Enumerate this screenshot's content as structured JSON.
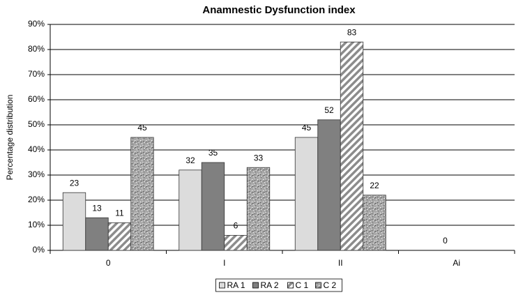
{
  "chart_data": {
    "type": "bar",
    "title": "Anamnestic Dysfunction index",
    "y_label": "Percentage distribution",
    "categories": [
      "0",
      "I",
      "II",
      "Ai"
    ],
    "series": [
      {
        "name": "RA 1",
        "color": "#dcdcdc",
        "pattern": "solid",
        "values": [
          23,
          32,
          45,
          null
        ]
      },
      {
        "name": "RA 2",
        "color": "#808080",
        "pattern": "solid",
        "values": [
          13,
          35,
          52,
          0
        ]
      },
      {
        "name": "C 1",
        "color": "#8c8c8c",
        "pattern": "diagonal",
        "values": [
          11,
          6,
          83,
          null
        ]
      },
      {
        "name": "C 2",
        "color": "#a8a8a8",
        "pattern": "speckle",
        "values": [
          45,
          33,
          22,
          null
        ]
      }
    ],
    "ylim": [
      0,
      90
    ],
    "yticks": [
      {
        "value": 0,
        "label": "0%"
      },
      {
        "value": 10,
        "label": "10%"
      },
      {
        "value": 20,
        "label": "20%"
      },
      {
        "value": 30,
        "label": "30%"
      },
      {
        "value": 40,
        "label": "40%"
      },
      {
        "value": 50,
        "label": "50%"
      },
      {
        "value": 60,
        "label": "60%"
      },
      {
        "value": 70,
        "label": "70%"
      },
      {
        "value": 80,
        "label": "80%"
      },
      {
        "value": 90,
        "label": "90%"
      }
    ],
    "grid": true,
    "legend": "bottom"
  }
}
